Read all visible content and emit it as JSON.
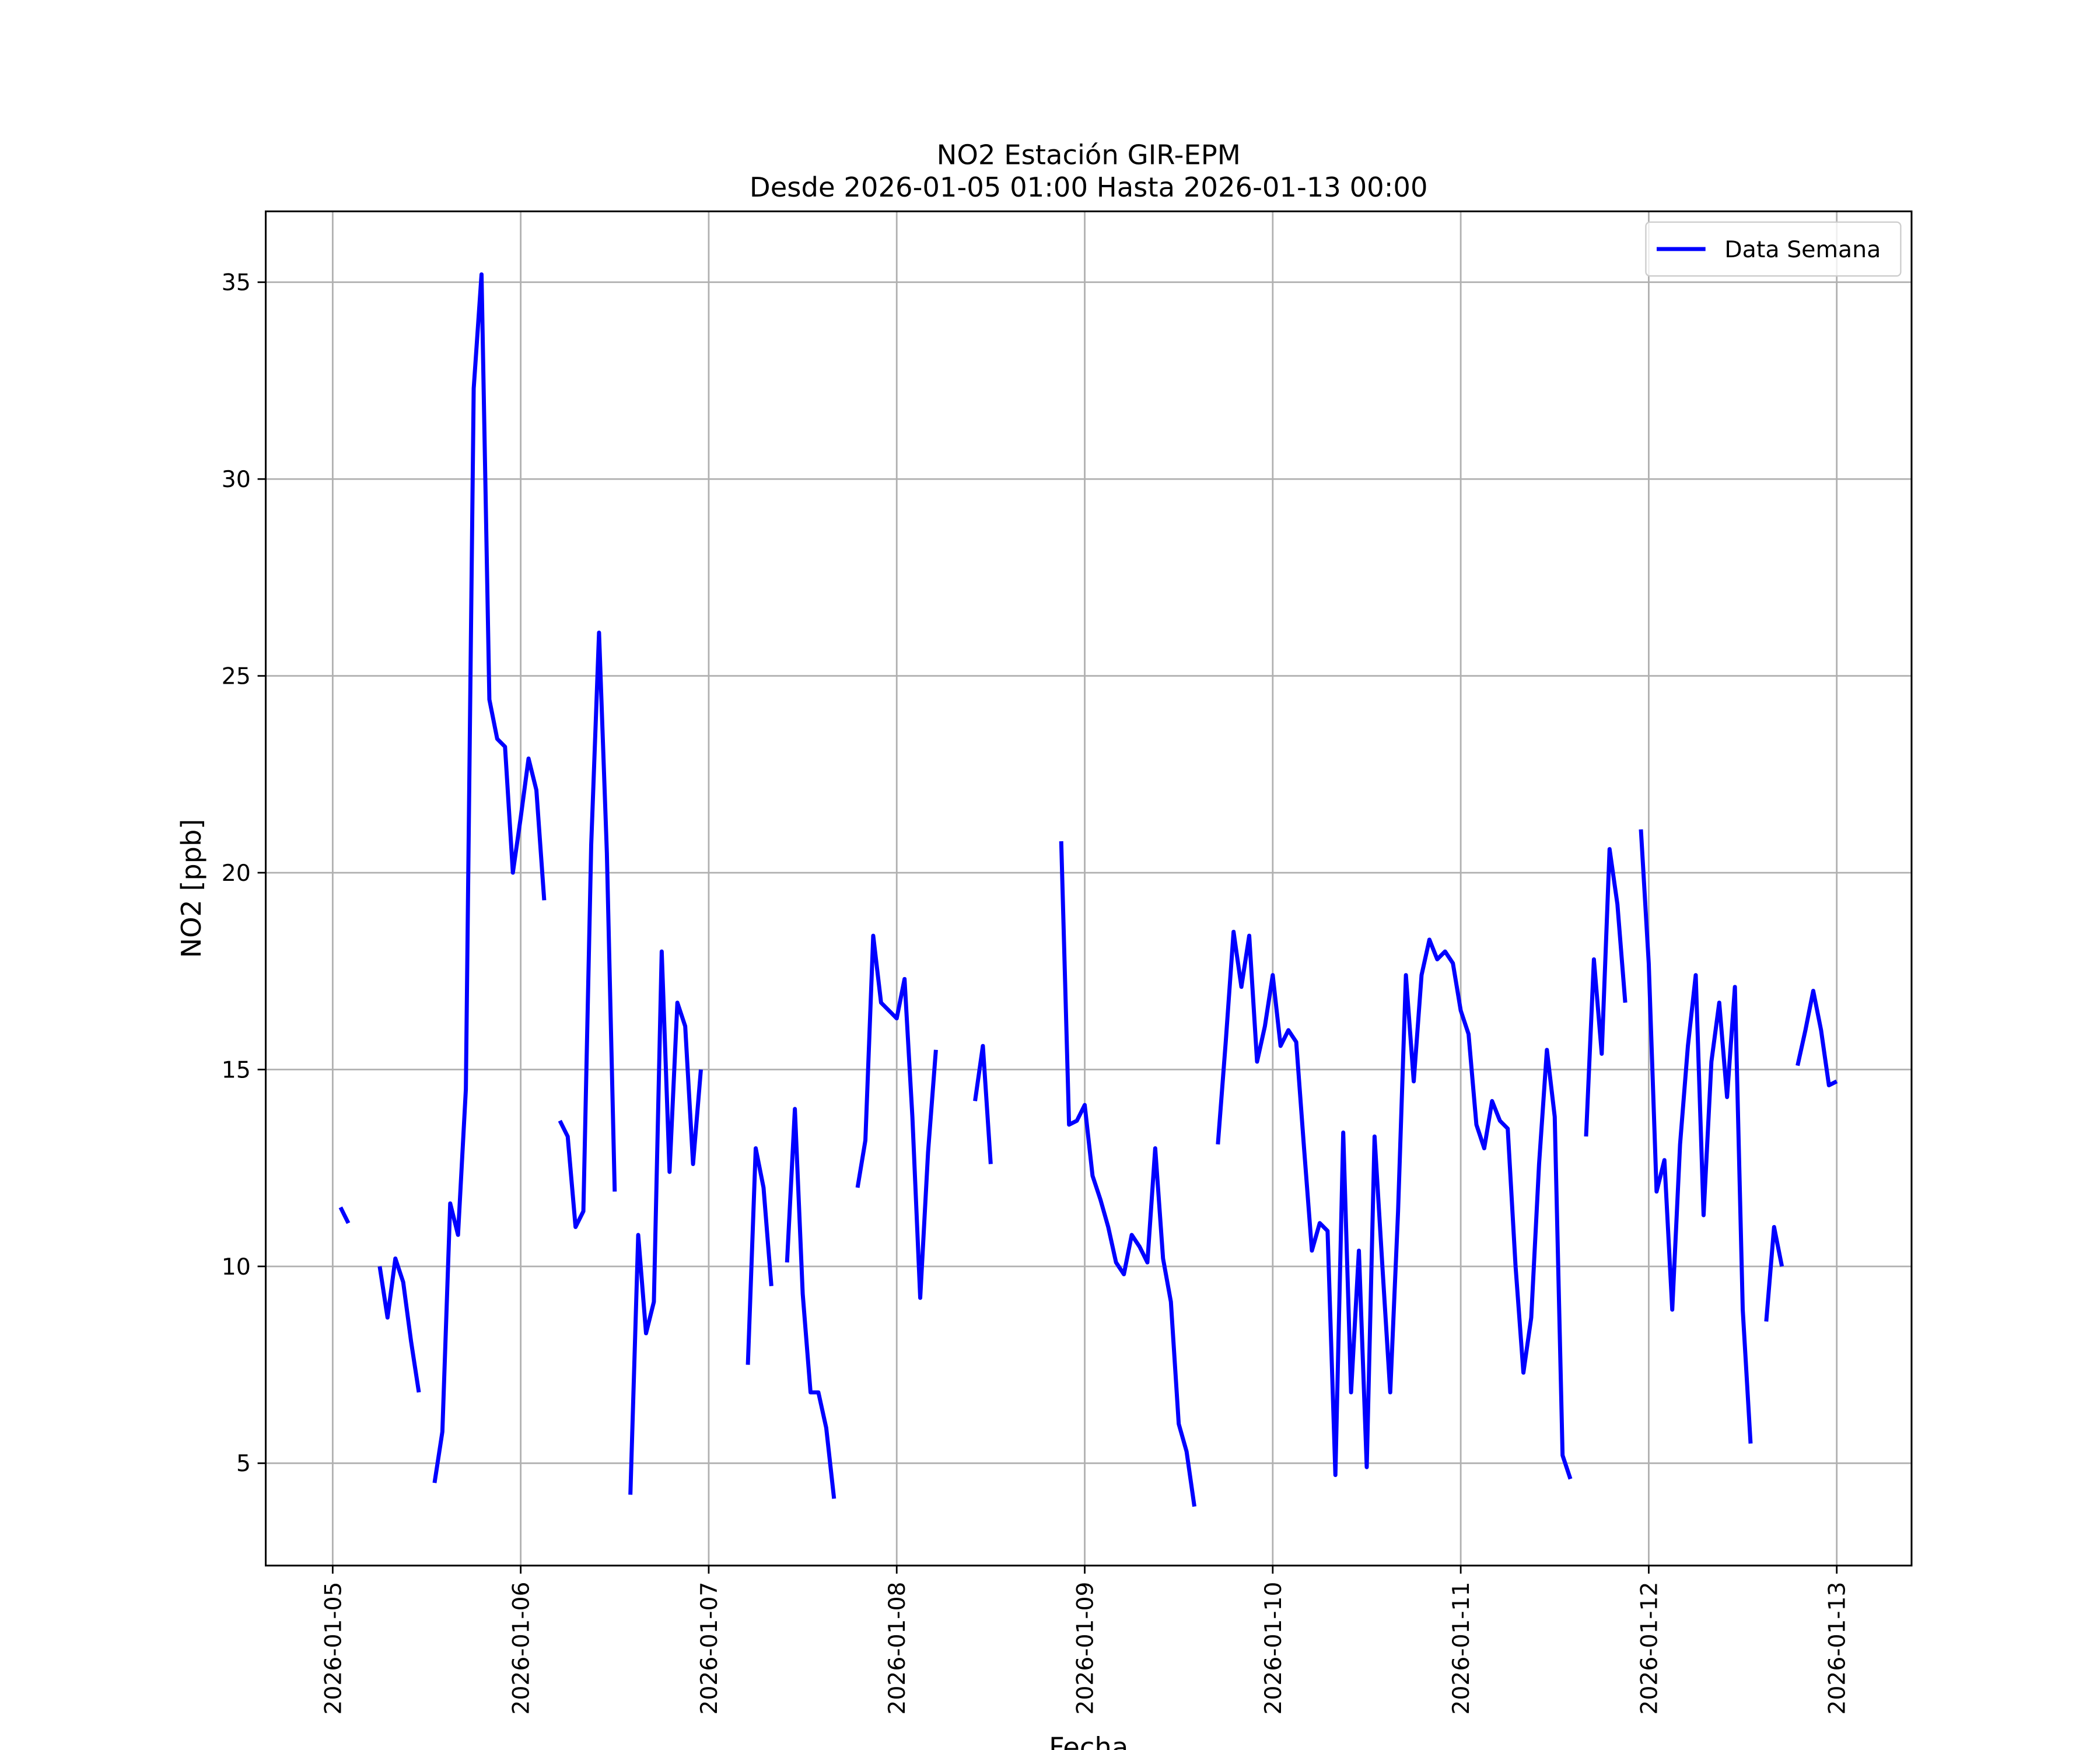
{
  "chart_data": {
    "type": "line",
    "title": "NO2 Estación GIR-EPM",
    "subtitle": "Desde 2026-01-05 01:00 Hasta 2026-01-13 00:00",
    "x_label": "Fecha",
    "y_label": "NO2 [ppb]",
    "grid": true,
    "legend": "upper right",
    "xlim": [
      "2026-01-04 15:27",
      "2026-01-13 09:33"
    ],
    "xticks": [
      {
        "value": "2026-01-05 00:00",
        "label": "2026-01-05"
      },
      {
        "value": "2026-01-06 00:00",
        "label": "2026-01-06"
      },
      {
        "value": "2026-01-07 00:00",
        "label": "2026-01-07"
      },
      {
        "value": "2026-01-08 00:00",
        "label": "2026-01-08"
      },
      {
        "value": "2026-01-09 00:00",
        "label": "2026-01-09"
      },
      {
        "value": "2026-01-10 00:00",
        "label": "2026-01-10"
      },
      {
        "value": "2026-01-11 00:00",
        "label": "2026-01-11"
      },
      {
        "value": "2026-01-12 00:00",
        "label": "2026-01-12"
      },
      {
        "value": "2026-01-13 00:00",
        "label": "2026-01-13"
      }
    ],
    "ylim": [
      2.4,
      36.8
    ],
    "yticks": [
      5,
      10,
      15,
      20,
      25,
      30,
      35
    ],
    "x": [
      "2026-01-05 01:00",
      "2026-01-05 02:00",
      "2026-01-05 03:00",
      "2026-01-05 04:00",
      "2026-01-05 05:00",
      "2026-01-05 06:00",
      "2026-01-05 07:00",
      "2026-01-05 08:00",
      "2026-01-05 09:00",
      "2026-01-05 10:00",
      "2026-01-05 11:00",
      "2026-01-05 12:00",
      "2026-01-05 13:00",
      "2026-01-05 14:00",
      "2026-01-05 15:00",
      "2026-01-05 16:00",
      "2026-01-05 17:00",
      "2026-01-05 18:00",
      "2026-01-05 19:00",
      "2026-01-05 20:00",
      "2026-01-05 21:00",
      "2026-01-05 22:00",
      "2026-01-05 23:00",
      "2026-01-06 00:00",
      "2026-01-06 01:00",
      "2026-01-06 02:00",
      "2026-01-06 03:00",
      "2026-01-06 04:00",
      "2026-01-06 05:00",
      "2026-01-06 06:00",
      "2026-01-06 07:00",
      "2026-01-06 08:00",
      "2026-01-06 09:00",
      "2026-01-06 10:00",
      "2026-01-06 11:00",
      "2026-01-06 12:00",
      "2026-01-06 13:00",
      "2026-01-06 14:00",
      "2026-01-06 15:00",
      "2026-01-06 16:00",
      "2026-01-06 17:00",
      "2026-01-06 18:00",
      "2026-01-06 19:00",
      "2026-01-06 20:00",
      "2026-01-06 21:00",
      "2026-01-06 22:00",
      "2026-01-06 23:00",
      "2026-01-07 00:00",
      "2026-01-07 01:00",
      "2026-01-07 02:00",
      "2026-01-07 03:00",
      "2026-01-07 04:00",
      "2026-01-07 05:00",
      "2026-01-07 06:00",
      "2026-01-07 07:00",
      "2026-01-07 08:00",
      "2026-01-07 09:00",
      "2026-01-07 10:00",
      "2026-01-07 11:00",
      "2026-01-07 12:00",
      "2026-01-07 13:00",
      "2026-01-07 14:00",
      "2026-01-07 15:00",
      "2026-01-07 16:00",
      "2026-01-07 17:00",
      "2026-01-07 18:00",
      "2026-01-07 19:00",
      "2026-01-07 20:00",
      "2026-01-07 21:00",
      "2026-01-07 22:00",
      "2026-01-07 23:00",
      "2026-01-08 00:00",
      "2026-01-08 01:00",
      "2026-01-08 02:00",
      "2026-01-08 03:00",
      "2026-01-08 04:00",
      "2026-01-08 05:00",
      "2026-01-08 06:00",
      "2026-01-08 07:00",
      "2026-01-08 08:00",
      "2026-01-08 09:00",
      "2026-01-08 10:00",
      "2026-01-08 11:00",
      "2026-01-08 12:00",
      "2026-01-08 13:00",
      "2026-01-08 14:00",
      "2026-01-08 15:00",
      "2026-01-08 16:00",
      "2026-01-08 17:00",
      "2026-01-08 18:00",
      "2026-01-08 19:00",
      "2026-01-08 20:00",
      "2026-01-08 21:00",
      "2026-01-08 22:00",
      "2026-01-08 23:00",
      "2026-01-09 00:00",
      "2026-01-09 01:00",
      "2026-01-09 02:00",
      "2026-01-09 03:00",
      "2026-01-09 04:00",
      "2026-01-09 05:00",
      "2026-01-09 06:00",
      "2026-01-09 07:00",
      "2026-01-09 08:00",
      "2026-01-09 09:00",
      "2026-01-09 10:00",
      "2026-01-09 11:00",
      "2026-01-09 12:00",
      "2026-01-09 13:00",
      "2026-01-09 14:00",
      "2026-01-09 15:00",
      "2026-01-09 16:00",
      "2026-01-09 17:00",
      "2026-01-09 18:00",
      "2026-01-09 19:00",
      "2026-01-09 20:00",
      "2026-01-09 21:00",
      "2026-01-09 22:00",
      "2026-01-09 23:00",
      "2026-01-10 00:00",
      "2026-01-10 01:00",
      "2026-01-10 02:00",
      "2026-01-10 03:00",
      "2026-01-10 04:00",
      "2026-01-10 05:00",
      "2026-01-10 06:00",
      "2026-01-10 07:00",
      "2026-01-10 08:00",
      "2026-01-10 09:00",
      "2026-01-10 10:00",
      "2026-01-10 11:00",
      "2026-01-10 12:00",
      "2026-01-10 13:00",
      "2026-01-10 14:00",
      "2026-01-10 15:00",
      "2026-01-10 16:00",
      "2026-01-10 17:00",
      "2026-01-10 18:00",
      "2026-01-10 19:00",
      "2026-01-10 20:00",
      "2026-01-10 21:00",
      "2026-01-10 22:00",
      "2026-01-10 23:00",
      "2026-01-11 00:00",
      "2026-01-11 01:00",
      "2026-01-11 02:00",
      "2026-01-11 03:00",
      "2026-01-11 04:00",
      "2026-01-11 05:00",
      "2026-01-11 06:00",
      "2026-01-11 07:00",
      "2026-01-11 08:00",
      "2026-01-11 09:00",
      "2026-01-11 10:00",
      "2026-01-11 11:00",
      "2026-01-11 12:00",
      "2026-01-11 13:00",
      "2026-01-11 14:00",
      "2026-01-11 15:00",
      "2026-01-11 16:00",
      "2026-01-11 17:00",
      "2026-01-11 18:00",
      "2026-01-11 19:00",
      "2026-01-11 20:00",
      "2026-01-11 21:00",
      "2026-01-11 22:00",
      "2026-01-11 23:00",
      "2026-01-12 00:00",
      "2026-01-12 01:00",
      "2026-01-12 02:00",
      "2026-01-12 03:00",
      "2026-01-12 04:00",
      "2026-01-12 05:00",
      "2026-01-12 06:00",
      "2026-01-12 07:00",
      "2026-01-12 08:00",
      "2026-01-12 09:00",
      "2026-01-12 10:00",
      "2026-01-12 11:00",
      "2026-01-12 12:00",
      "2026-01-12 13:00",
      "2026-01-12 14:00",
      "2026-01-12 15:00",
      "2026-01-12 16:00",
      "2026-01-12 17:00",
      "2026-01-12 18:00",
      "2026-01-12 19:00",
      "2026-01-12 20:00",
      "2026-01-12 21:00",
      "2026-01-12 22:00",
      "2026-01-12 23:00",
      "2026-01-13 00:00"
    ],
    "series": [
      {
        "name": "Data Semana",
        "color": "#0000ff",
        "values": [
          11.5,
          11.1,
          null,
          null,
          null,
          10.0,
          8.7,
          10.2,
          9.6,
          8.1,
          6.8,
          null,
          4.5,
          5.8,
          11.6,
          10.8,
          14.5,
          32.3,
          35.2,
          24.4,
          23.4,
          23.2,
          20.0,
          21.4,
          22.9,
          22.1,
          19.3,
          null,
          13.7,
          13.3,
          11.0,
          11.4,
          20.7,
          26.1,
          20.5,
          11.9,
          null,
          4.2,
          10.8,
          8.3,
          9.1,
          18.0,
          12.4,
          16.7,
          16.1,
          12.6,
          15.0,
          null,
          null,
          null,
          null,
          null,
          7.5,
          13.0,
          12.0,
          9.5,
          null,
          10.1,
          14.0,
          9.3,
          6.8,
          6.8,
          5.9,
          4.1,
          null,
          null,
          12.0,
          13.2,
          18.4,
          16.7,
          16.5,
          16.3,
          17.3,
          13.8,
          9.2,
          12.9,
          15.5,
          null,
          null,
          null,
          null,
          14.2,
          15.6,
          12.6,
          null,
          null,
          null,
          null,
          null,
          null,
          null,
          null,
          20.8,
          13.6,
          13.7,
          14.1,
          12.3,
          11.7,
          11.0,
          10.1,
          9.8,
          10.8,
          10.5,
          10.1,
          13.0,
          10.2,
          9.1,
          6.0,
          5.3,
          3.9,
          null,
          null,
          13.1,
          15.7,
          18.5,
          17.1,
          18.4,
          15.2,
          16.1,
          17.4,
          15.6,
          16.0,
          15.7,
          13.0,
          10.4,
          11.1,
          10.9,
          4.7,
          13.4,
          6.8,
          10.4,
          4.9,
          13.3,
          10.0,
          6.8,
          11.4,
          17.4,
          14.7,
          17.4,
          18.3,
          17.8,
          18.0,
          17.7,
          16.5,
          15.9,
          13.6,
          13.0,
          14.2,
          13.7,
          13.5,
          10.0,
          7.3,
          8.7,
          12.6,
          15.5,
          13.8,
          5.2,
          4.6,
          null,
          13.3,
          17.8,
          15.4,
          20.6,
          19.2,
          16.7,
          null,
          21.1,
          17.7,
          11.9,
          12.7,
          8.9,
          13.1,
          15.6,
          17.4,
          11.3,
          15.2,
          16.7,
          14.3,
          17.1,
          8.9,
          5.5,
          null,
          8.6,
          11.0,
          10.0,
          null,
          15.1,
          16.0,
          17.0,
          16.0,
          14.6,
          14.7
        ]
      }
    ]
  }
}
